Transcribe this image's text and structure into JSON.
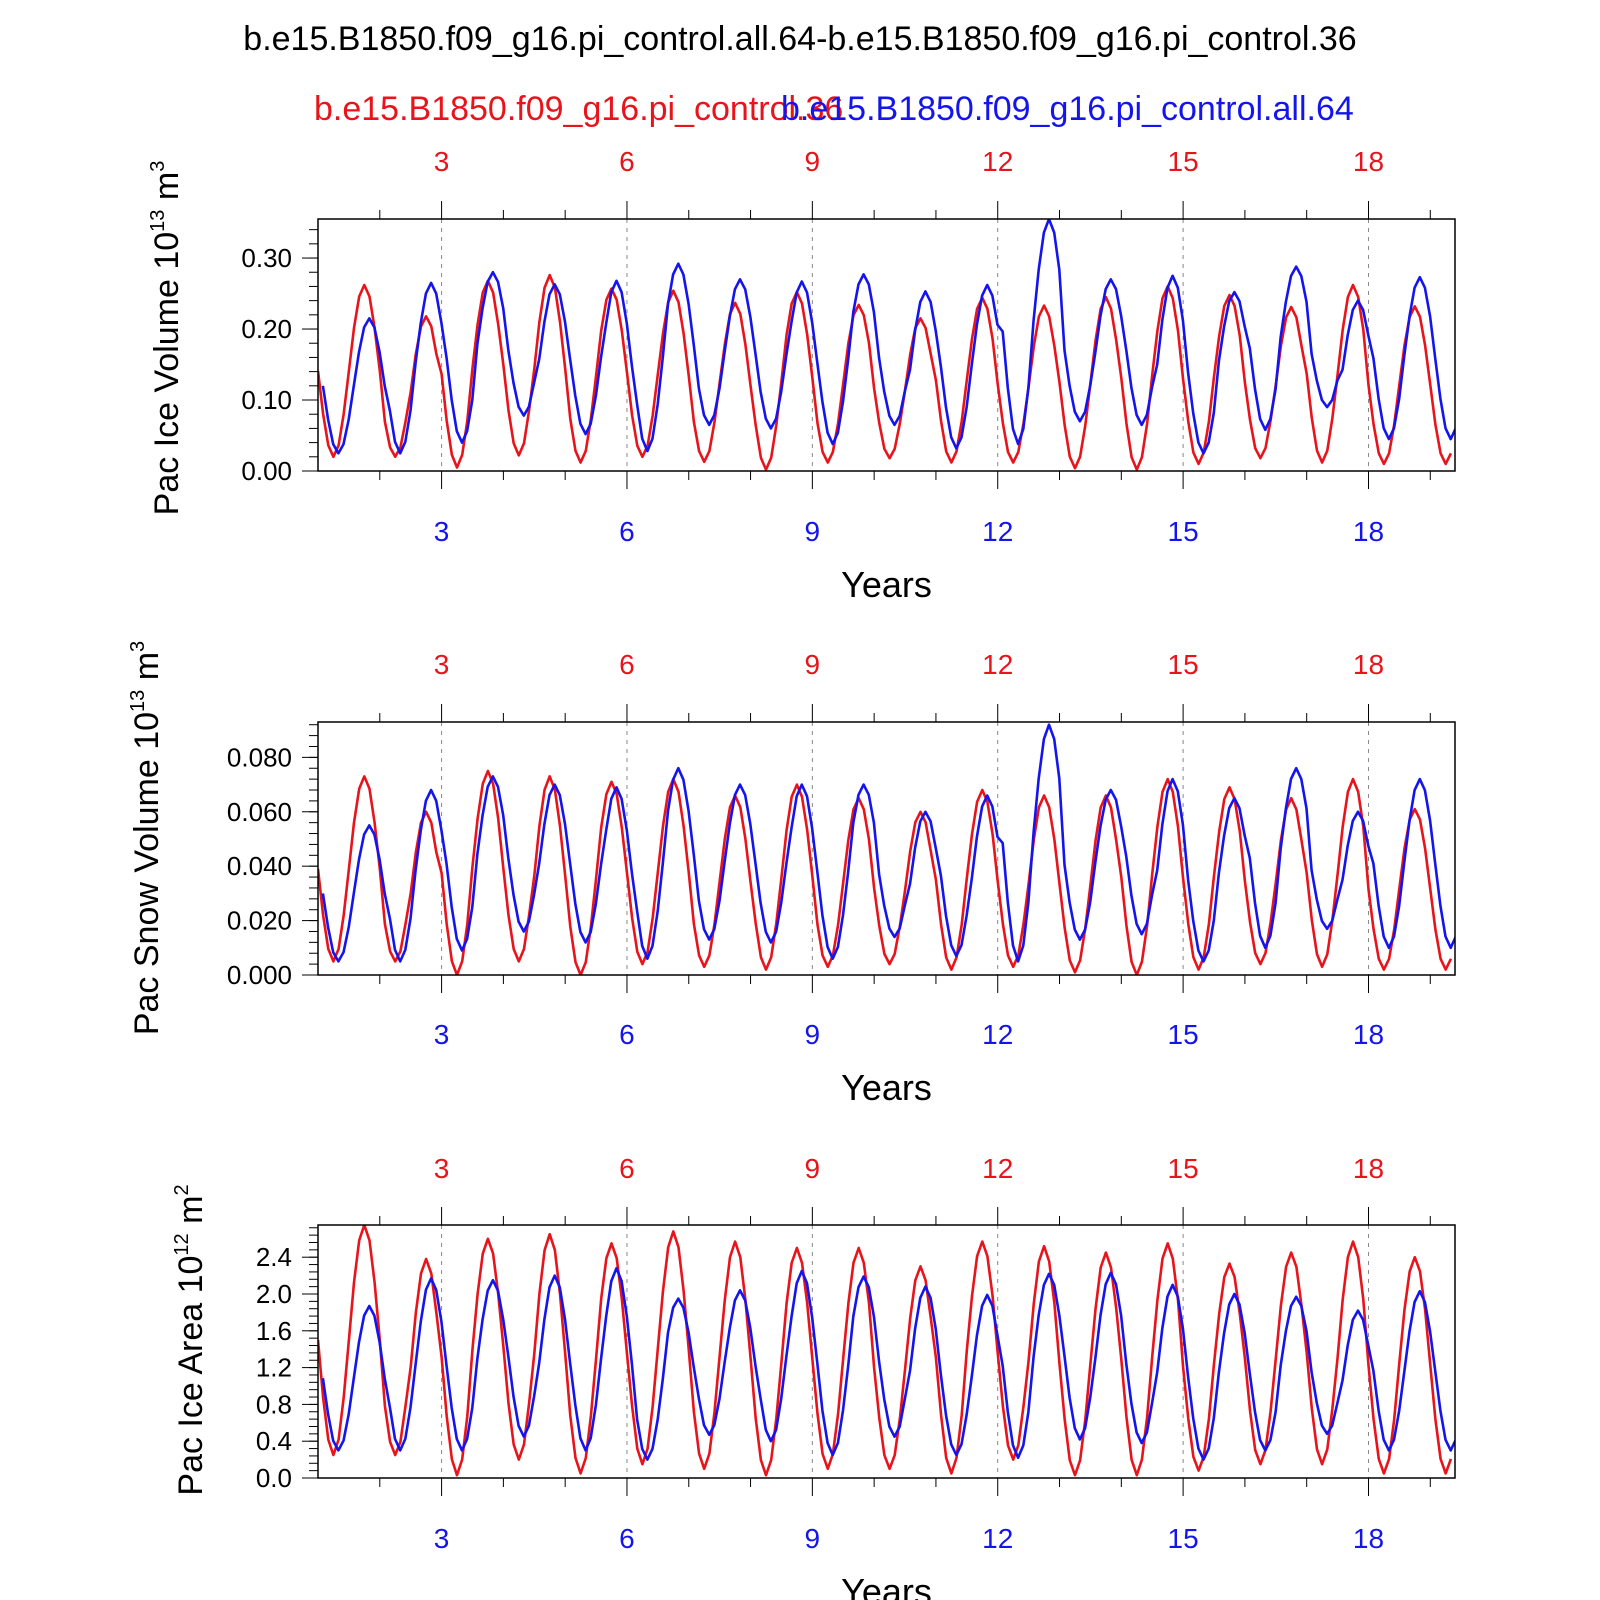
{
  "title": "b.e15.B1850.f09_g16.pi_control.all.64-b.e15.B1850.f09_g16.pi_control.36",
  "legend": {
    "red_label": "b.e15.B1850.f09_g16.pi_control.36",
    "blue_label": "b.e15.B1850.f09_g16.pi_control.all.64"
  },
  "colors": {
    "red": "#e8141b",
    "blue": "#1414ee",
    "axis": "#000000",
    "grid": "#888888"
  },
  "chart_data": [
    {
      "type": "line",
      "ylabel": "Pac Ice Volume 10",
      "ylabel_exp": "13",
      "ylabel_unit": "m",
      "ylabel_unit_exp": "3",
      "xlabel": "Years",
      "xlim": [
        1,
        19.4
      ],
      "ylim": [
        0,
        0.355
      ],
      "yticks": [
        "0.00",
        "0.10",
        "0.20",
        "0.30"
      ],
      "ytick_values": [
        0,
        0.1,
        0.2,
        0.3
      ],
      "xticks": [
        "3",
        "6",
        "9",
        "12",
        "15",
        "18"
      ],
      "series": [
        {
          "name": "b.e15.B1850.f09_g16.pi_control.36",
          "color": "#e8141b",
          "maxima": [
            0.262,
            0.218,
            0.268,
            0.276,
            0.257,
            0.254,
            0.237,
            0.252,
            0.234,
            0.215,
            0.244,
            0.233,
            0.245,
            0.26,
            0.248,
            0.231,
            0.262,
            0.232
          ],
          "minima": [
            0.02,
            0.005,
            0.022,
            0.012,
            0.02,
            0.013,
            0.002,
            0.012,
            0.018,
            0.012,
            0.012,
            0.004,
            0.002,
            0.01,
            0.018,
            0.012,
            0.01,
            0.012
          ]
        },
        {
          "name": "b.e15.B1850.f09_g16.pi_control.all.64",
          "color": "#1414ee",
          "maxima": [
            0.215,
            0.265,
            0.28,
            0.263,
            0.268,
            0.292,
            0.27,
            0.267,
            0.277,
            0.253,
            0.262,
            0.355,
            0.27,
            0.275,
            0.252,
            0.288,
            0.24,
            0.273
          ],
          "minima": [
            0.025,
            0.04,
            0.078,
            0.052,
            0.028,
            0.065,
            0.06,
            0.038,
            0.065,
            0.032,
            0.038,
            0.07,
            0.065,
            0.025,
            0.058,
            0.09,
            0.045,
            0.052
          ]
        }
      ]
    },
    {
      "type": "line",
      "ylabel": "Pac Snow Volume 10",
      "ylabel_exp": "13",
      "ylabel_unit": "m",
      "ylabel_unit_exp": "3",
      "xlabel": "Years",
      "xlim": [
        1,
        19.4
      ],
      "ylim": [
        0,
        0.093
      ],
      "yticks": [
        "0.000",
        "0.020",
        "0.040",
        "0.060",
        "0.080"
      ],
      "ytick_values": [
        0,
        0.02,
        0.04,
        0.06,
        0.08
      ],
      "xticks": [
        "3",
        "6",
        "9",
        "12",
        "15",
        "18"
      ],
      "series": [
        {
          "name": "b.e15.B1850.f09_g16.pi_control.36",
          "color": "#e8141b",
          "maxima": [
            0.073,
            0.06,
            0.075,
            0.073,
            0.071,
            0.072,
            0.066,
            0.07,
            0.065,
            0.06,
            0.068,
            0.066,
            0.066,
            0.072,
            0.069,
            0.065,
            0.072,
            0.061
          ],
          "minima": [
            0.005,
            0.0,
            0.005,
            0.0,
            0.004,
            0.003,
            0.002,
            0.003,
            0.004,
            0.002,
            0.003,
            0.001,
            0.0,
            0.002,
            0.004,
            0.003,
            0.002,
            0.003
          ]
        },
        {
          "name": "b.e15.B1850.f09_g16.pi_control.all.64",
          "color": "#1414ee",
          "maxima": [
            0.055,
            0.068,
            0.073,
            0.07,
            0.069,
            0.076,
            0.07,
            0.07,
            0.07,
            0.06,
            0.066,
            0.092,
            0.068,
            0.072,
            0.065,
            0.076,
            0.06,
            0.072
          ],
          "minima": [
            0.005,
            0.009,
            0.016,
            0.012,
            0.006,
            0.013,
            0.012,
            0.006,
            0.014,
            0.007,
            0.005,
            0.013,
            0.015,
            0.005,
            0.01,
            0.017,
            0.01,
            0.011
          ]
        }
      ]
    },
    {
      "type": "line",
      "ylabel": "Pac Ice Area 10",
      "ylabel_exp": "12",
      "ylabel_unit": "m",
      "ylabel_unit_exp": "2",
      "xlabel": "Years",
      "xlim": [
        1,
        19.4
      ],
      "ylim": [
        0,
        2.75
      ],
      "yticks": [
        "0.0",
        "0.4",
        "0.8",
        "1.2",
        "1.6",
        "2.0",
        "2.4"
      ],
      "ytick_values": [
        0,
        0.4,
        0.8,
        1.2,
        1.6,
        2.0,
        2.4
      ],
      "xticks": [
        "3",
        "6",
        "9",
        "12",
        "15",
        "18"
      ],
      "series": [
        {
          "name": "b.e15.B1850.f09_g16.pi_control.36",
          "color": "#e8141b",
          "maxima": [
            2.75,
            2.38,
            2.6,
            2.65,
            2.55,
            2.68,
            2.57,
            2.5,
            2.5,
            2.3,
            2.57,
            2.52,
            2.45,
            2.55,
            2.33,
            2.45,
            2.57,
            2.4
          ],
          "minima": [
            0.25,
            0.03,
            0.2,
            0.05,
            0.15,
            0.1,
            0.03,
            0.1,
            0.1,
            0.05,
            0.2,
            0.03,
            0.03,
            0.08,
            0.15,
            0.15,
            0.05,
            0.12
          ]
        },
        {
          "name": "b.e15.B1850.f09_g16.pi_control.all.64",
          "color": "#1414ee",
          "maxima": [
            1.87,
            2.17,
            2.15,
            2.2,
            2.28,
            1.95,
            2.04,
            2.25,
            2.19,
            2.08,
            1.99,
            2.22,
            2.23,
            2.1,
            2.0,
            1.97,
            1.82,
            2.03
          ],
          "minima": [
            0.3,
            0.3,
            0.45,
            0.3,
            0.2,
            0.47,
            0.4,
            0.25,
            0.45,
            0.25,
            0.22,
            0.42,
            0.38,
            0.2,
            0.3,
            0.48,
            0.3,
            0.28
          ]
        }
      ]
    }
  ]
}
